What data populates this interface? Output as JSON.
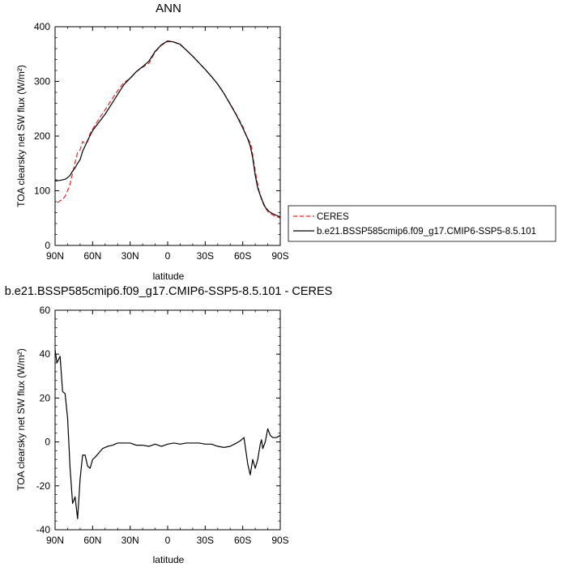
{
  "chart_data": [
    {
      "type": "line",
      "title": "ANN",
      "xlabel": "latitude",
      "ylabel": "TOA clearsky net SW flux (W/m²)",
      "xlim": [
        90,
        -90
      ],
      "ylim": [
        0,
        400
      ],
      "x_ticks": [
        90,
        60,
        30,
        0,
        -30,
        -60,
        -90
      ],
      "x_tick_labels": [
        "90N",
        "60N",
        "30N",
        "0",
        "30S",
        "60S",
        "90S"
      ],
      "y_ticks": [
        0,
        100,
        200,
        300,
        400
      ],
      "y_tick_labels": [
        "0",
        "100",
        "200",
        "300",
        "400"
      ],
      "legend_position": "right",
      "series": [
        {
          "name": "CERES",
          "color": "#e8262b",
          "dash": "dashed",
          "points": [
            [
              88,
              78
            ],
            [
              86,
              82
            ],
            [
              84,
              84
            ],
            [
              82,
              90
            ],
            [
              80,
              100
            ],
            [
              78,
              112
            ],
            [
              76,
              132
            ],
            [
              74,
              152
            ],
            [
              72,
              170
            ],
            [
              70,
              175
            ],
            [
              68,
              190
            ],
            [
              66,
              186
            ],
            [
              64,
              190
            ],
            [
              62,
              205
            ],
            [
              58,
              220
            ],
            [
              54,
              235
            ],
            [
              50,
              248
            ],
            [
              45,
              266
            ],
            [
              40,
              283
            ],
            [
              35,
              298
            ],
            [
              30,
              305
            ],
            [
              25,
              318
            ],
            [
              20,
              326
            ],
            [
              15,
              333
            ],
            [
              10,
              354
            ],
            [
              5,
              366
            ],
            [
              0,
              373
            ],
            [
              -5,
              372
            ],
            [
              -10,
              367
            ],
            [
              -15,
              357
            ],
            [
              -20,
              346
            ],
            [
              -25,
              334
            ],
            [
              -30,
              322
            ],
            [
              -35,
              309
            ],
            [
              -40,
              295
            ],
            [
              -45,
              278
            ],
            [
              -50,
              259
            ],
            [
              -55,
              239
            ],
            [
              -60,
              218
            ],
            [
              -63,
              200
            ],
            [
              -65,
              192
            ],
            [
              -67,
              180
            ],
            [
              -69,
              150
            ],
            [
              -71,
              123
            ],
            [
              -73,
              100
            ],
            [
              -75,
              84
            ],
            [
              -77,
              73
            ],
            [
              -80,
              62
            ],
            [
              -83,
              57
            ],
            [
              -86,
              53
            ],
            [
              -88,
              52
            ],
            [
              -90,
              50
            ]
          ]
        },
        {
          "name": "b.e21.BSSP585cmip6.f09_g17.CMIP6-SSP5-8.5.101",
          "color": "#000000",
          "dash": "solid",
          "points": [
            [
              90,
              118
            ],
            [
              86,
              119
            ],
            [
              82,
              121
            ],
            [
              80,
              124
            ],
            [
              78,
              128
            ],
            [
              76,
              136
            ],
            [
              74,
              142
            ],
            [
              72,
              150
            ],
            [
              70,
              157
            ],
            [
              68,
              172
            ],
            [
              66,
              182
            ],
            [
              64,
              192
            ],
            [
              60,
              210
            ],
            [
              56,
              222
            ],
            [
              50,
              240
            ],
            [
              45,
              258
            ],
            [
              40,
              276
            ],
            [
              35,
              294
            ],
            [
              30,
              306
            ],
            [
              25,
              318
            ],
            [
              20,
              327
            ],
            [
              15,
              337
            ],
            [
              10,
              355
            ],
            [
              5,
              367
            ],
            [
              0,
              374
            ],
            [
              -5,
              372
            ],
            [
              -10,
              368
            ],
            [
              -15,
              357
            ],
            [
              -20,
              346
            ],
            [
              -25,
              334
            ],
            [
              -30,
              322
            ],
            [
              -35,
              309
            ],
            [
              -40,
              295
            ],
            [
              -45,
              278
            ],
            [
              -50,
              258
            ],
            [
              -55,
              238
            ],
            [
              -60,
              215
            ],
            [
              -64,
              195
            ],
            [
              -66,
              182
            ],
            [
              -68,
              160
            ],
            [
              -70,
              128
            ],
            [
              -72,
              105
            ],
            [
              -74,
              92
            ],
            [
              -76,
              80
            ],
            [
              -78,
              70
            ],
            [
              -81,
              62
            ],
            [
              -84,
              58
            ],
            [
              -87,
              55
            ],
            [
              -90,
              52
            ]
          ]
        }
      ]
    },
    {
      "type": "line",
      "title": "b.e21.BSSP585cmip6.f09_g17.CMIP6-SSP5-8.5.101 - CERES",
      "xlabel": "latitude",
      "ylabel": "TOA clearsky net SW flux (W/m²)",
      "xlim": [
        90,
        -90
      ],
      "ylim": [
        -40,
        60
      ],
      "x_ticks": [
        90,
        60,
        30,
        0,
        -30,
        -60,
        -90
      ],
      "x_tick_labels": [
        "90N",
        "60N",
        "30N",
        "0",
        "30S",
        "60S",
        "90S"
      ],
      "y_ticks": [
        -40,
        -20,
        0,
        20,
        40,
        60
      ],
      "y_tick_labels": [
        "-40",
        "-20",
        "0",
        "20",
        "40",
        "60"
      ],
      "series": [
        {
          "name": "",
          "color": "#000000",
          "dash": "solid",
          "points": [
            [
              90,
              42
            ],
            [
              88.5,
              36
            ],
            [
              86,
              39
            ],
            [
              84,
              23
            ],
            [
              82,
              22
            ],
            [
              80,
              11
            ],
            [
              78,
              -12
            ],
            [
              76,
              -28
            ],
            [
              74,
              -25
            ],
            [
              72,
              -35
            ],
            [
              70,
              -17
            ],
            [
              68,
              -6
            ],
            [
              66,
              -6
            ],
            [
              64,
              -11
            ],
            [
              62,
              -12
            ],
            [
              60,
              -8
            ],
            [
              58,
              -7
            ],
            [
              55,
              -5
            ],
            [
              52,
              -3
            ],
            [
              48,
              -2
            ],
            [
              44,
              -1.5
            ],
            [
              40,
              -0.5
            ],
            [
              35,
              -0.5
            ],
            [
              30,
              -0.5
            ],
            [
              25,
              -1.5
            ],
            [
              20,
              -1.5
            ],
            [
              15,
              -2
            ],
            [
              10,
              -1
            ],
            [
              5,
              -2
            ],
            [
              0,
              -1
            ],
            [
              -5,
              -0.5
            ],
            [
              -10,
              -1
            ],
            [
              -15,
              -0.5
            ],
            [
              -20,
              -0.5
            ],
            [
              -25,
              -0.5
            ],
            [
              -30,
              -1
            ],
            [
              -35,
              -1
            ],
            [
              -40,
              -2
            ],
            [
              -45,
              -2.5
            ],
            [
              -50,
              -2
            ],
            [
              -55,
              -0.5
            ],
            [
              -58,
              0.5
            ],
            [
              -61,
              2
            ],
            [
              -62.5,
              -4
            ],
            [
              -64,
              -10
            ],
            [
              -66,
              -15
            ],
            [
              -68,
              -8
            ],
            [
              -70,
              -12
            ],
            [
              -72,
              -8
            ],
            [
              -74,
              -1
            ],
            [
              -75,
              1
            ],
            [
              -76,
              -3
            ],
            [
              -78,
              0
            ],
            [
              -80,
              6
            ],
            [
              -82,
              3
            ],
            [
              -84,
              2
            ],
            [
              -87,
              2
            ],
            [
              -90,
              3
            ]
          ]
        }
      ]
    }
  ]
}
